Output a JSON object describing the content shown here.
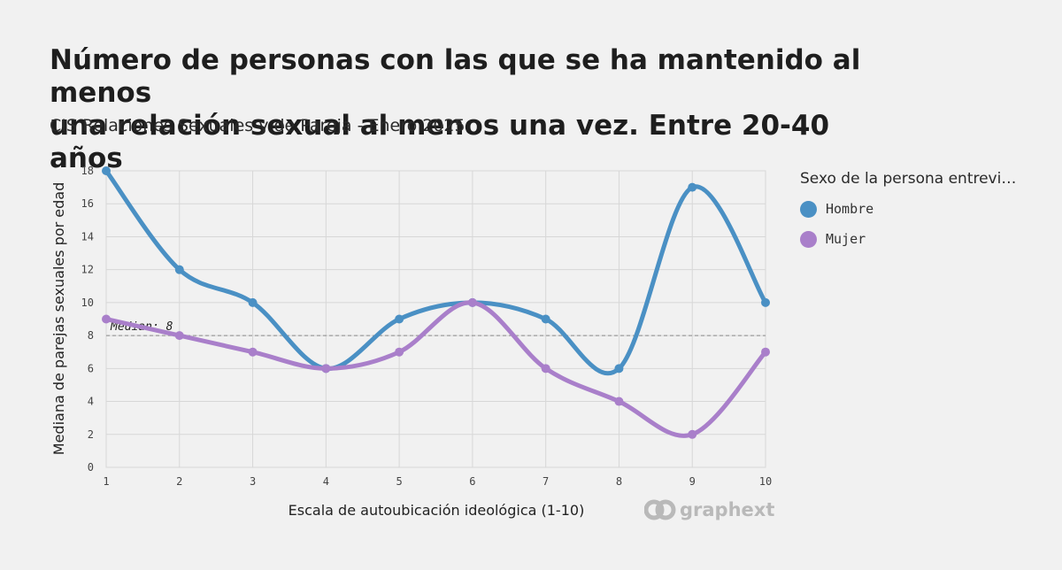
{
  "title_line1": "Número de personas con las que se ha mantenido al menos",
  "title_line2": "una relación sexual al menos una vez. Entre 20-40 años",
  "subtitle": "CIS Relaciones Sexuales y de Pareja - Enero 2025",
  "legend": {
    "title": "Sexo de la persona entrevi…",
    "items": [
      {
        "label": "Hombre",
        "color": "#4a90c4"
      },
      {
        "label": "Mujer",
        "color": "#a97fca"
      }
    ]
  },
  "logo_text": "graphext",
  "logo_icon": "graphext-logo-icon",
  "chart_data": {
    "type": "line",
    "xlabel": "Escala de autoubicación ideológica (1-10)",
    "ylabel": "Mediana de parejas sexuales por edad",
    "x": [
      1,
      2,
      3,
      4,
      5,
      6,
      7,
      8,
      9,
      10
    ],
    "x_ticks": [
      "1",
      "2",
      "3",
      "4",
      "5",
      "6",
      "7",
      "8",
      "9",
      "10"
    ],
    "y_ticks": [
      "0",
      "2",
      "4",
      "6",
      "8",
      "10",
      "12",
      "14",
      "16",
      "18"
    ],
    "xlim": [
      1,
      10
    ],
    "ylim": [
      0,
      18
    ],
    "grid": true,
    "series": [
      {
        "name": "Hombre",
        "color": "#4a90c4",
        "values": [
          18,
          12,
          10,
          6,
          9,
          10,
          9,
          6,
          17,
          10
        ]
      },
      {
        "name": "Mujer",
        "color": "#a97fca",
        "values": [
          9,
          8,
          7,
          6,
          7,
          10,
          6,
          4,
          2,
          7
        ]
      }
    ],
    "median": {
      "value": 8,
      "label": "Median: 8"
    }
  }
}
